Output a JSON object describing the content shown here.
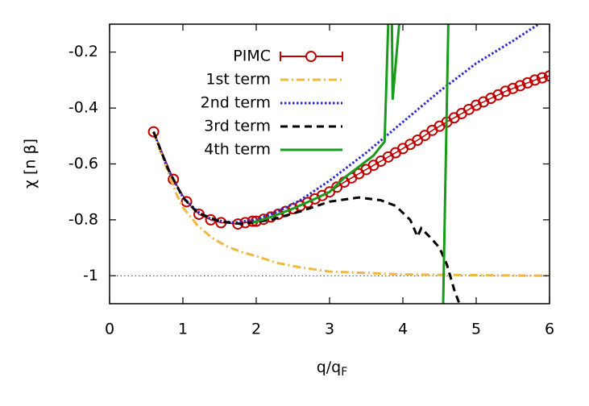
{
  "chart_data": {
    "type": "line",
    "xlabel_parts": [
      "q/q",
      "F"
    ],
    "ylabel": "χ [n β]",
    "xlim": [
      0,
      6
    ],
    "ylim": [
      -1.1,
      -0.1
    ],
    "xticks": [
      0,
      1,
      2,
      3,
      4,
      5,
      6
    ],
    "yticks": [
      -0.2,
      -0.4,
      -0.6,
      -0.8,
      -1
    ],
    "hline": -1,
    "legend": "top-left",
    "series": [
      {
        "name": "PIMC",
        "color": "#c00000",
        "style": "points",
        "x": [
          0.6,
          0.87,
          1.05,
          1.22,
          1.38,
          1.52,
          1.75,
          1.85,
          1.95,
          2.0,
          2.1,
          2.2,
          2.3,
          2.4,
          2.5,
          2.6,
          2.7,
          2.8,
          2.9,
          3.0,
          3.1,
          3.2,
          3.3,
          3.4,
          3.5,
          3.6,
          3.7,
          3.8,
          3.9,
          4.0,
          4.1,
          4.2,
          4.3,
          4.4,
          4.5,
          4.6,
          4.7,
          4.8,
          4.9,
          5.0,
          5.1,
          5.2,
          5.3,
          5.4,
          5.5,
          5.6,
          5.7,
          5.8,
          5.9,
          6.0
        ],
        "values": [
          -0.485,
          -0.655,
          -0.735,
          -0.78,
          -0.8,
          -0.81,
          -0.815,
          -0.81,
          -0.805,
          -0.805,
          -0.798,
          -0.79,
          -0.78,
          -0.77,
          -0.76,
          -0.75,
          -0.738,
          -0.725,
          -0.713,
          -0.7,
          -0.683,
          -0.665,
          -0.65,
          -0.635,
          -0.62,
          -0.605,
          -0.59,
          -0.575,
          -0.56,
          -0.545,
          -0.53,
          -0.515,
          -0.498,
          -0.48,
          -0.465,
          -0.45,
          -0.435,
          -0.42,
          -0.405,
          -0.39,
          -0.378,
          -0.365,
          -0.353,
          -0.34,
          -0.33,
          -0.32,
          -0.31,
          -0.3,
          -0.292,
          -0.285
        ]
      },
      {
        "name": "1st term",
        "color": "#f0b840",
        "style": "dashdot",
        "x": [
          0.6,
          0.7,
          0.8,
          0.9,
          1.0,
          1.2,
          1.4,
          1.6,
          1.8,
          2.0,
          2.3,
          2.6,
          3.0,
          3.5,
          4.0,
          5.0,
          6.0
        ],
        "values": [
          -0.485,
          -0.56,
          -0.63,
          -0.7,
          -0.756,
          -0.82,
          -0.865,
          -0.895,
          -0.915,
          -0.93,
          -0.955,
          -0.97,
          -0.985,
          -0.99,
          -0.995,
          -0.998,
          -1.0
        ]
      },
      {
        "name": "2nd term",
        "color": "#2a2ad0",
        "style": "dotted",
        "x": [
          0.6,
          0.8,
          1.0,
          1.2,
          1.4,
          1.7,
          2.0,
          2.3,
          2.6,
          3.0,
          3.5,
          4.0,
          4.5,
          5.0,
          5.5,
          5.85
        ],
        "values": [
          -0.485,
          -0.62,
          -0.72,
          -0.77,
          -0.8,
          -0.81,
          -0.8,
          -0.77,
          -0.73,
          -0.66,
          -0.56,
          -0.45,
          -0.34,
          -0.24,
          -0.16,
          -0.1
        ]
      },
      {
        "name": "3rd term",
        "color": "#000000",
        "style": "dashed",
        "x": [
          0.6,
          0.8,
          1.0,
          1.2,
          1.5,
          1.8,
          2.2,
          2.6,
          3.0,
          3.4,
          3.7,
          3.9,
          4.1,
          4.2,
          4.25,
          4.4,
          4.5,
          4.6,
          4.7,
          4.77
        ],
        "values": [
          -0.485,
          -0.62,
          -0.72,
          -0.775,
          -0.805,
          -0.815,
          -0.8,
          -0.77,
          -0.735,
          -0.72,
          -0.73,
          -0.75,
          -0.8,
          -0.86,
          -0.83,
          -0.87,
          -0.9,
          -0.96,
          -1.05,
          -1.1
        ]
      },
      {
        "name": "4th term",
        "color": "#1a9a1a",
        "style": "solid",
        "x": [
          1.95,
          2.2,
          2.5,
          2.8,
          3.0,
          3.2,
          3.4,
          3.6,
          3.75,
          3.8,
          null,
          3.85,
          3.86,
          3.95,
          null,
          4.55,
          4.62
        ],
        "values": [
          -0.81,
          -0.79,
          -0.76,
          -0.725,
          -0.7,
          -0.65,
          -0.61,
          -0.57,
          -0.52,
          -0.1,
          null,
          -0.1,
          -0.37,
          -0.1,
          null,
          -1.1,
          -0.1
        ]
      }
    ]
  }
}
